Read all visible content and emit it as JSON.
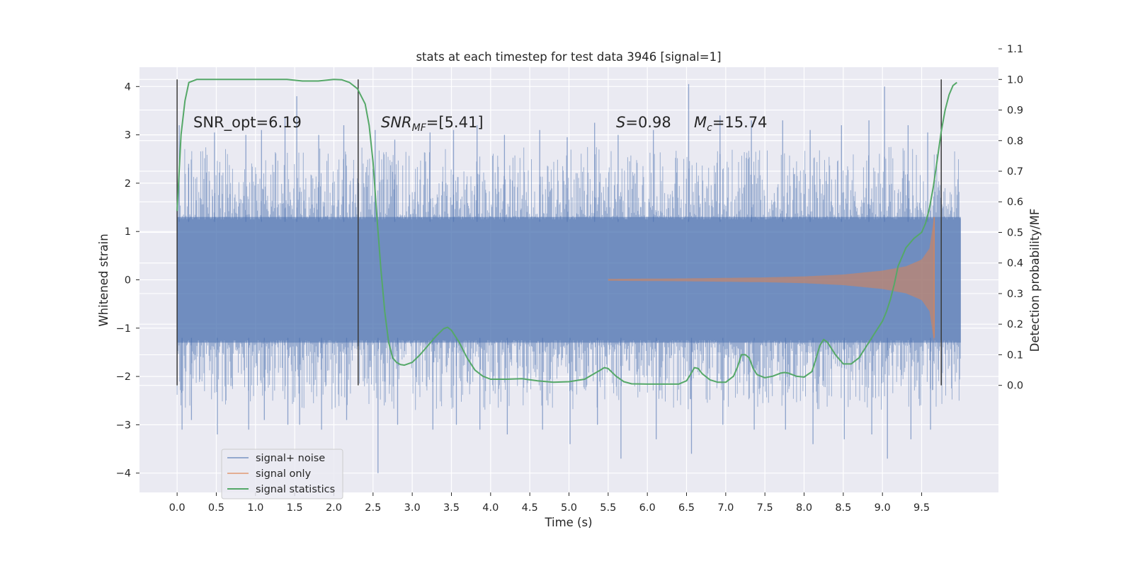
{
  "chart_data": {
    "type": "line",
    "title": "stats at each timestep for test data 3946 [signal=1]",
    "xlabel": "Time (s)",
    "ylabel": "Whitened strain",
    "ylabel_right": "Detection probability/MF",
    "xlim": [
      -0.48,
      10.48
    ],
    "ylim": [
      -4.4,
      4.4
    ],
    "ylim_right": [
      -0.35,
      1.04
    ],
    "x_ticks": [
      "0.0",
      "0.5",
      "1.0",
      "1.5",
      "2.0",
      "2.5",
      "3.0",
      "3.5",
      "4.0",
      "4.5",
      "5.0",
      "5.5",
      "6.0",
      "6.5",
      "7.0",
      "7.5",
      "8.0",
      "8.5",
      "9.0",
      "9.5"
    ],
    "y_ticks": [
      "4",
      "3",
      "2",
      "1",
      "0",
      "−1",
      "−2",
      "−3",
      "−4"
    ],
    "y_right_ticks": [
      "1.1",
      "1.0",
      "0.9",
      "0.8",
      "0.7",
      "0.6",
      "0.5",
      "0.4",
      "0.3",
      "0.2",
      "0.1",
      "0.0"
    ],
    "grid": true,
    "legend_position": "lower-left",
    "annotations": {
      "snr_opt": "SNR_opt=6.19",
      "snr_mf_base": "SNR",
      "snr_mf_sub": "MF",
      "snr_mf_value": "=[5.41]",
      "s_symbol": "S",
      "s_value": "=0.98",
      "mc_base": "M",
      "mc_sub": "c",
      "mc_value": "=15.74"
    },
    "vertical_markers_x": [
      0.0,
      2.31,
      9.75
    ],
    "noise_envelope": {
      "x_range": [
        0.0,
        10.0
      ],
      "typical_range": [
        -1.3,
        1.3
      ],
      "extreme_range": [
        -4.0,
        4.05
      ]
    },
    "series": [
      {
        "name": "signal+ noise",
        "color": "#4c72b0",
        "axis": "left",
        "peaks_x": [
          0.0,
          0.12,
          0.45,
          0.85,
          1.05,
          1.35,
          1.5,
          1.78,
          2.1,
          2.5,
          2.75,
          3.2,
          3.5,
          3.8,
          4.15,
          4.6,
          4.95,
          5.3,
          5.6,
          6.05,
          6.5,
          6.9,
          7.3,
          7.7,
          8.05,
          8.45,
          8.8,
          9.0,
          9.3,
          9.55
        ],
        "peaks_high": [
          3.2,
          2.4,
          3.05,
          3.0,
          3.1,
          3.35,
          3.8,
          3.0,
          3.2,
          3.1,
          2.9,
          3.05,
          3.1,
          3.2,
          3.0,
          3.1,
          2.95,
          3.25,
          3.0,
          3.1,
          4.05,
          3.4,
          3.3,
          3.3,
          3.1,
          3.2,
          3.3,
          4.0,
          3.2,
          3.05
        ],
        "troughs_low": [
          -3.1,
          -2.9,
          -3.2,
          -3.1,
          -2.9,
          -3.0,
          -3.0,
          -3.1,
          -2.9,
          -4.0,
          -3.0,
          -3.1,
          -3.0,
          -3.1,
          -3.2,
          -3.1,
          -3.4,
          -3.0,
          -3.7,
          -3.3,
          -3.6,
          -3.0,
          -3.1,
          -3.1,
          -3.4,
          -3.3,
          -3.2,
          -3.7,
          -3.3,
          -3.1
        ]
      },
      {
        "name": "signal only",
        "color": "#dd8452",
        "axis": "left",
        "x": [
          5.5,
          6.5,
          7.5,
          8.0,
          8.5,
          9.0,
          9.3,
          9.5,
          9.6,
          9.66,
          9.7
        ],
        "amplitude": [
          0.02,
          0.03,
          0.05,
          0.07,
          0.11,
          0.19,
          0.28,
          0.42,
          0.65,
          1.3,
          0.0
        ]
      },
      {
        "name": "signal statistics",
        "color": "#55a868",
        "axis": "right",
        "x": [
          0.0,
          0.05,
          0.1,
          0.15,
          0.25,
          0.4,
          0.6,
          0.8,
          1.0,
          1.2,
          1.4,
          1.6,
          1.8,
          2.0,
          2.1,
          2.2,
          2.3,
          2.4,
          2.45,
          2.5,
          2.55,
          2.6,
          2.65,
          2.7,
          2.75,
          2.8,
          2.85,
          2.9,
          3.0,
          3.1,
          3.2,
          3.3,
          3.4,
          3.45,
          3.5,
          3.6,
          3.7,
          3.8,
          3.9,
          4.0,
          4.2,
          4.4,
          4.6,
          4.8,
          5.0,
          5.2,
          5.3,
          5.4,
          5.45,
          5.5,
          5.6,
          5.7,
          5.8,
          6.0,
          6.2,
          6.4,
          6.5,
          6.55,
          6.6,
          6.65,
          6.7,
          6.75,
          6.8,
          6.9,
          7.0,
          7.1,
          7.15,
          7.2,
          7.25,
          7.3,
          7.35,
          7.4,
          7.5,
          7.6,
          7.7,
          7.75,
          7.8,
          7.9,
          8.0,
          8.1,
          8.15,
          8.2,
          8.25,
          8.3,
          8.35,
          8.4,
          8.5,
          8.6,
          8.7,
          8.8,
          8.9,
          9.0,
          9.05,
          9.1,
          9.15,
          9.2,
          9.3,
          9.4,
          9.5,
          9.55,
          9.6,
          9.65,
          9.7,
          9.75,
          9.8,
          9.85,
          9.9,
          9.95
        ],
        "values": [
          0.57,
          0.82,
          0.93,
          0.99,
          1.0,
          1.0,
          1.0,
          1.0,
          1.0,
          1.0,
          1.0,
          0.995,
          0.995,
          1.0,
          0.999,
          0.99,
          0.97,
          0.92,
          0.85,
          0.73,
          0.55,
          0.38,
          0.24,
          0.14,
          0.09,
          0.075,
          0.068,
          0.066,
          0.075,
          0.1,
          0.13,
          0.16,
          0.185,
          0.19,
          0.18,
          0.14,
          0.09,
          0.05,
          0.03,
          0.02,
          0.02,
          0.022,
          0.015,
          0.01,
          0.012,
          0.02,
          0.035,
          0.05,
          0.058,
          0.055,
          0.03,
          0.012,
          0.005,
          0.004,
          0.004,
          0.004,
          0.015,
          0.035,
          0.058,
          0.055,
          0.038,
          0.028,
          0.018,
          0.01,
          0.01,
          0.03,
          0.06,
          0.1,
          0.1,
          0.09,
          0.055,
          0.035,
          0.025,
          0.03,
          0.04,
          0.042,
          0.04,
          0.03,
          0.027,
          0.045,
          0.085,
          0.13,
          0.15,
          0.14,
          0.12,
          0.1,
          0.07,
          0.07,
          0.09,
          0.13,
          0.17,
          0.21,
          0.24,
          0.28,
          0.33,
          0.39,
          0.45,
          0.48,
          0.5,
          0.53,
          0.58,
          0.65,
          0.74,
          0.83,
          0.9,
          0.95,
          0.98,
          0.99
        ]
      }
    ]
  }
}
